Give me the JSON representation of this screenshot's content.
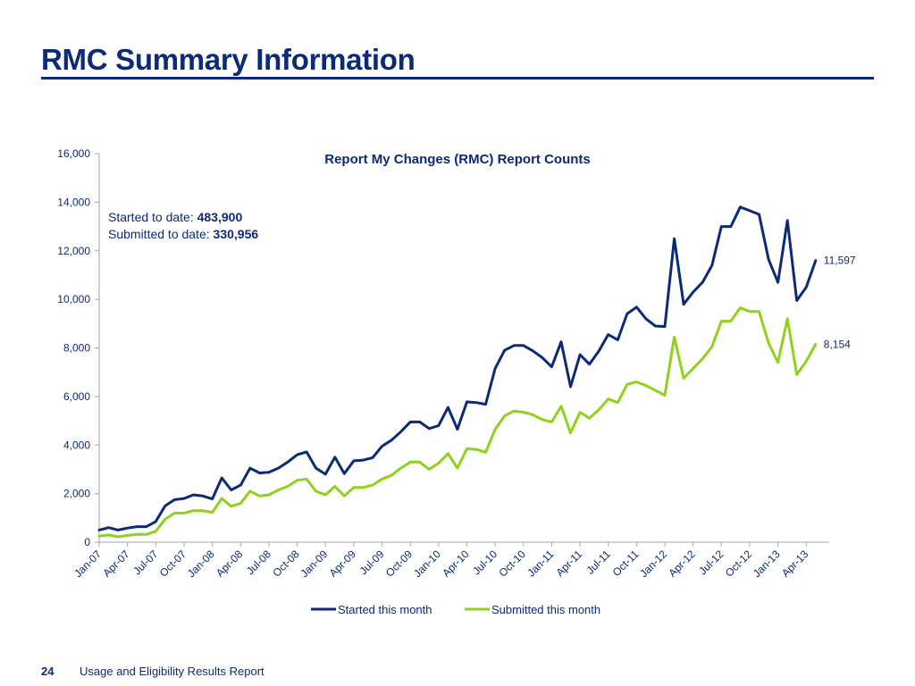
{
  "slide": {
    "title": "RMC Summary Information",
    "page_number": "24",
    "footer_text": "Usage and Eligibility Results Report"
  },
  "annotation": {
    "started_label": "Started to date: ",
    "started_value": "483,900",
    "submitted_label": "Submitted to date: ",
    "submitted_value": "330,956"
  },
  "colors": {
    "title": "#0b2a78",
    "started": "#0b2a78",
    "submitted": "#8fd11c",
    "axis": "#a6a6a6"
  },
  "chart_data": {
    "type": "line",
    "title": "Report My Changes (RMC) Report Counts",
    "xlabel": "",
    "ylabel": "",
    "ylim": [
      0,
      16000
    ],
    "yticks": [
      0,
      2000,
      4000,
      6000,
      8000,
      10000,
      12000,
      14000,
      16000
    ],
    "ytick_labels": [
      "0",
      "2,000",
      "4,000",
      "6,000",
      "8,000",
      "10,000",
      "12,000",
      "14,000",
      "16,000"
    ],
    "x": [
      "Jan-07",
      "Feb-07",
      "Mar-07",
      "Apr-07",
      "May-07",
      "Jun-07",
      "Jul-07",
      "Aug-07",
      "Sep-07",
      "Oct-07",
      "Nov-07",
      "Dec-07",
      "Jan-08",
      "Feb-08",
      "Mar-08",
      "Apr-08",
      "May-08",
      "Jun-08",
      "Jul-08",
      "Aug-08",
      "Sep-08",
      "Oct-08",
      "Nov-08",
      "Dec-08",
      "Jan-09",
      "Feb-09",
      "Mar-09",
      "Apr-09",
      "May-09",
      "Jun-09",
      "Jul-09",
      "Aug-09",
      "Sep-09",
      "Oct-09",
      "Nov-09",
      "Dec-09",
      "Jan-10",
      "Feb-10",
      "Mar-10",
      "Apr-10",
      "May-10",
      "Jun-10",
      "Jul-10",
      "Aug-10",
      "Sep-10",
      "Oct-10",
      "Nov-10",
      "Dec-10",
      "Jan-11",
      "Feb-11",
      "Mar-11",
      "Apr-11",
      "May-11",
      "Jun-11",
      "Jul-11",
      "Aug-11",
      "Sep-11",
      "Oct-11",
      "Nov-11",
      "Dec-11",
      "Jan-12",
      "Feb-12",
      "Mar-12",
      "Apr-12",
      "May-12",
      "Jun-12",
      "Jul-12",
      "Aug-12",
      "Sep-12",
      "Oct-12",
      "Nov-12",
      "Dec-12",
      "Jan-13",
      "Feb-13",
      "Mar-13",
      "Apr-13",
      "May-13"
    ],
    "xtick_labels": [
      "Jan-07",
      "Apr-07",
      "Jul-07",
      "Oct-07",
      "Jan-08",
      "Apr-08",
      "Jul-08",
      "Oct-08",
      "Jan-09",
      "Apr-09",
      "Jul-09",
      "Oct-09",
      "Jan-10",
      "Apr-10",
      "Jul-10",
      "Oct-10",
      "Jan-11",
      "Apr-11",
      "Jul-11",
      "Oct-11",
      "Jan-12",
      "Apr-12",
      "Jul-12",
      "Oct-12",
      "Jan-13",
      "Apr-13"
    ],
    "series": [
      {
        "name": "Started this month",
        "color": "#0b2a78",
        "values": [
          500,
          600,
          500,
          580,
          640,
          640,
          850,
          1500,
          1750,
          1800,
          1950,
          1900,
          1780,
          2650,
          2150,
          2350,
          3050,
          2850,
          2880,
          3050,
          3300,
          3600,
          3720,
          3050,
          2800,
          3500,
          2820,
          3350,
          3380,
          3480,
          3950,
          4200,
          4550,
          4950,
          4950,
          4680,
          4800,
          5550,
          4650,
          5780,
          5750,
          5680,
          7150,
          7900,
          8100,
          8100,
          7880,
          7600,
          7220,
          8250,
          6400,
          7720,
          7330,
          7870,
          8550,
          8330,
          9400,
          9680,
          9200,
          8900,
          8880,
          12500,
          9800,
          10300,
          10700,
          11400,
          13000,
          13000,
          13800,
          13650,
          13500,
          11650,
          10700,
          13250,
          9950,
          10500,
          11597
        ],
        "end_label": "11,597"
      },
      {
        "name": "Submitted this month",
        "color": "#8fd11c",
        "values": [
          250,
          300,
          220,
          280,
          320,
          320,
          450,
          950,
          1200,
          1200,
          1300,
          1300,
          1230,
          1800,
          1480,
          1600,
          2100,
          1900,
          1950,
          2150,
          2300,
          2550,
          2600,
          2100,
          1950,
          2300,
          1900,
          2250,
          2250,
          2350,
          2600,
          2750,
          3050,
          3300,
          3300,
          3000,
          3250,
          3650,
          3050,
          3850,
          3820,
          3700,
          4650,
          5200,
          5400,
          5350,
          5250,
          5050,
          4950,
          5600,
          4500,
          5350,
          5100,
          5450,
          5900,
          5750,
          6500,
          6600,
          6450,
          6250,
          6050,
          8450,
          6750,
          7150,
          7550,
          8050,
          9100,
          9100,
          9650,
          9500,
          9500,
          8200,
          7400,
          9200,
          6900,
          7450,
          8154
        ],
        "end_label": "8,154"
      }
    ],
    "legend_position": "bottom",
    "grid": false
  }
}
